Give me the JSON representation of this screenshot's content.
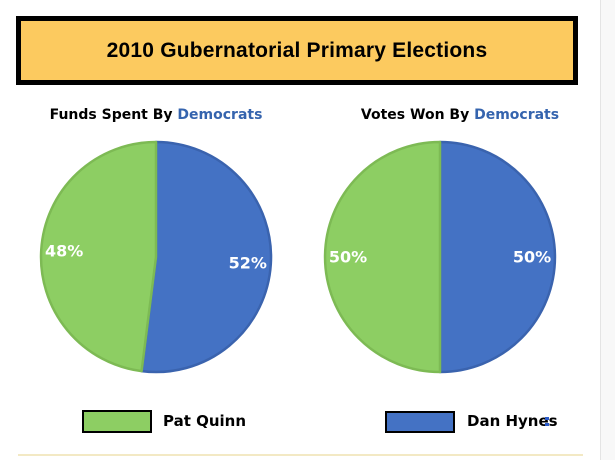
{
  "banner": {
    "title": "2010 Gubernatorial Primary Elections",
    "background_color": "#FCCA5F",
    "border_color": "#000000"
  },
  "chart_data": [
    {
      "type": "pie",
      "title": "Funds Spent By Democrats",
      "title_parts": {
        "black": "Funds Spent By",
        "blue": "Democrats"
      },
      "categories": [
        "Dan Hynes",
        "Pat Quinn"
      ],
      "values": [
        52,
        48
      ],
      "labels": [
        "52%",
        "48%"
      ],
      "colors": [
        "#4472C4",
        "#8DCE63"
      ],
      "stroke_colors": [
        "#3A63AE",
        "#7DBA54"
      ],
      "label_color": "#FFFFFF",
      "start_angle": "12-o-clock",
      "direction": "clockwise",
      "legend_position": "bottom-shared"
    },
    {
      "type": "pie",
      "title": "Votes Won By Democrats",
      "title_parts": {
        "black": "Votes Won By",
        "blue": "Democrats"
      },
      "categories": [
        "Dan Hynes",
        "Pat Quinn"
      ],
      "values": [
        50,
        50
      ],
      "labels": [
        "50%",
        "50%"
      ],
      "colors": [
        "#4472C4",
        "#8DCE63"
      ],
      "stroke_colors": [
        "#3A63AE",
        "#7DBA54"
      ],
      "label_color": "#FFFFFF",
      "start_angle": "12-o-clock",
      "direction": "clockwise",
      "legend_position": "bottom-shared"
    }
  ],
  "legend": {
    "items": [
      {
        "label": "Pat Quinn",
        "color": "#8DCE63"
      },
      {
        "label": "Dan Hynes",
        "color": "#4472C4"
      }
    ]
  },
  "accents": {
    "democrat_text_blue": "#3564AE",
    "scrollbar_track": "#F8F8F8",
    "bottom_cell_border": "#F3E9C4"
  }
}
